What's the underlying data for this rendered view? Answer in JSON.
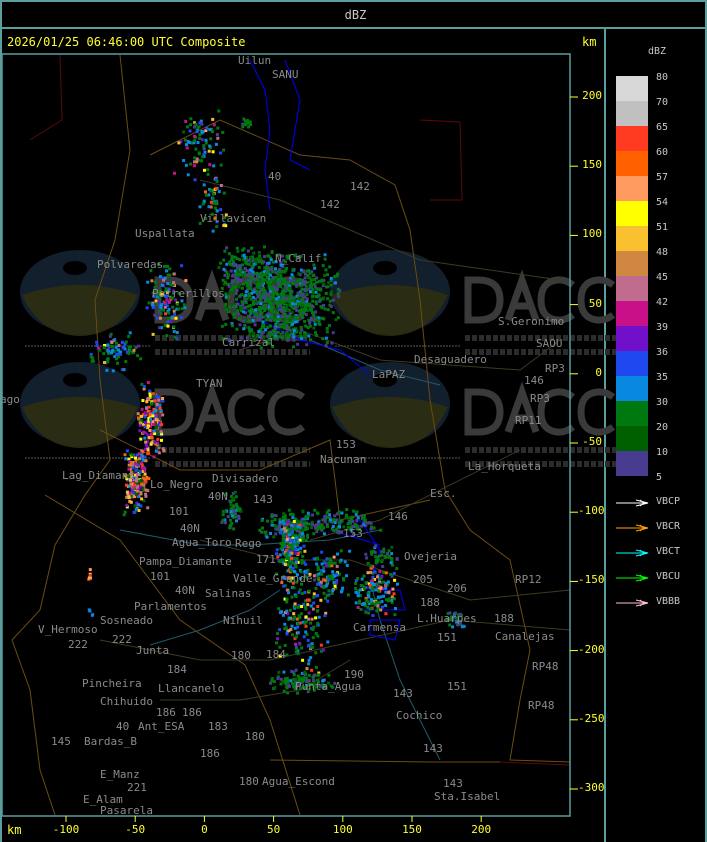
{
  "header": {
    "title": "dBZ"
  },
  "main": {
    "timestamp": "2026/01/25 06:46:00 UTC Composite",
    "unit_top": "km",
    "unit_bottom": "km",
    "y_ticks": [
      "200",
      "150",
      "100",
      "50",
      "0",
      "-50",
      "-100",
      "-150",
      "-200",
      "-250",
      "-300"
    ],
    "x_ticks": [
      "-100",
      "-50",
      "0",
      "50",
      "100",
      "150",
      "200"
    ]
  },
  "map": {
    "labels": [
      "Uilun",
      "SANU",
      "40",
      "142",
      "142",
      "Villavicen",
      "Uspallata",
      "Polvaredas",
      "N_Calif",
      "Potrerillos",
      "Carrizal",
      "LaPAZ",
      "Desaguadero",
      "S.Geronimo",
      "SAOU",
      "146",
      "RP3",
      "RP3",
      "RP11",
      "TYAN",
      "Lag_Diamante",
      "Lo_Negro",
      "40N",
      "Divisadero",
      "153",
      "Nacunan",
      "La_Horqueta",
      "Esc.",
      "143",
      "146",
      "101",
      "40N",
      "Agua_Toro",
      "Rego",
      "153",
      "171",
      "Pampa_Diamante",
      "101",
      "Valle_Grande",
      "Ovejeria",
      "205",
      "206",
      "40N",
      "Salinas",
      "Parlamentos",
      "Sosneado",
      "Nihuil",
      "188",
      "L.Huarpes",
      "Carmensa",
      "151",
      "188",
      "Canalejas",
      "V_Hermoso",
      "222",
      "222",
      "Junta",
      "184",
      "180",
      "184",
      "190",
      "Pincheira",
      "Llancanelo",
      "Punta_Agua",
      "Chihuido",
      "186",
      "186",
      "183",
      "Ant_ESA",
      "40",
      "145",
      "Bardas_B",
      "180",
      "143",
      "151",
      "Cochico",
      "143",
      "RP12",
      "RP48",
      "RP48",
      "186",
      "E_Manz",
      "180",
      "Agua_Escond",
      "221",
      "E_Alam",
      "Pasarela",
      "143",
      "Sta.Isabel",
      "ago"
    ],
    "watermark": {
      "logo": "DACC",
      "line1": "Dirección de Agricultura",
      "line2": "y Contingencias Climáticas",
      "url": "http://www.contingencias.mendoza.gov.ar"
    }
  },
  "legend": {
    "title": "dBZ",
    "levels": [
      {
        "label": "80",
        "color": "#d8d8d8"
      },
      {
        "label": "70",
        "color": "#c0c0c0"
      },
      {
        "label": "65",
        "color": "#ff3a20"
      },
      {
        "label": "60",
        "color": "#ff6000"
      },
      {
        "label": "57",
        "color": "#ff9a60"
      },
      {
        "label": "54",
        "color": "#ffff00"
      },
      {
        "label": "51",
        "color": "#f9c030"
      },
      {
        "label": "48",
        "color": "#d08840"
      },
      {
        "label": "45",
        "color": "#c06c8c"
      },
      {
        "label": "42",
        "color": "#c81088"
      },
      {
        "label": "39",
        "color": "#7010c8"
      },
      {
        "label": "36",
        "color": "#2048f0"
      },
      {
        "label": "35",
        "color": "#0888e0"
      },
      {
        "label": "30",
        "color": "#007810"
      },
      {
        "label": "20",
        "color": "#006000"
      },
      {
        "label": "10",
        "color": "#483c90"
      },
      {
        "label": "5",
        "color": ""
      }
    ],
    "radars": [
      {
        "label": "VBCP",
        "color": "#ffffff"
      },
      {
        "label": "VBCR",
        "color": "#ffa500"
      },
      {
        "label": "VBCT",
        "color": "#00ffff"
      },
      {
        "label": "VBCU",
        "color": "#00ff00"
      },
      {
        "label": "VBBB",
        "color": "#ffc0cb"
      }
    ]
  }
}
